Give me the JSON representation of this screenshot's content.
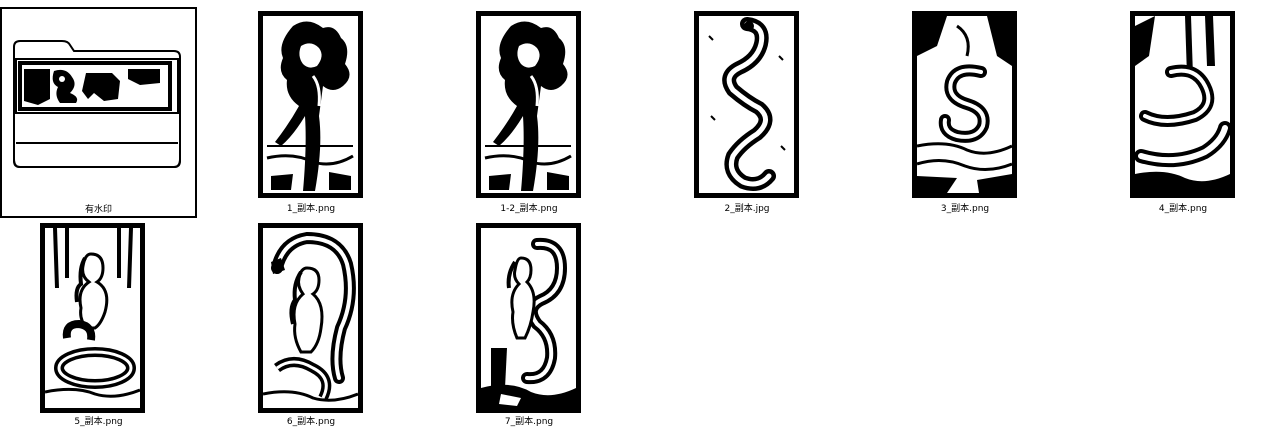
{
  "explorer": {
    "view": "large-icons",
    "items": [
      {
        "name": "有水印",
        "kind": "folder",
        "selected": true,
        "icon": "folder-icon"
      },
      {
        "name": "1_副本.png",
        "kind": "image",
        "icon": "tree-figure-icon"
      },
      {
        "name": "1-2_副本.png",
        "kind": "image",
        "icon": "tree-figure-icon"
      },
      {
        "name": "2_副本.jpg",
        "kind": "image",
        "icon": "serpent-icon"
      },
      {
        "name": "3_副本.png",
        "kind": "image",
        "icon": "serpent-icon"
      },
      {
        "name": "4_副本.png",
        "kind": "image",
        "icon": "serpent-icon"
      },
      {
        "name": "5_副本.png",
        "kind": "image",
        "icon": "woman-serpent-icon"
      },
      {
        "name": "6_副本.png",
        "kind": "image",
        "icon": "woman-serpent-icon"
      },
      {
        "name": "7_副本.png",
        "kind": "image",
        "icon": "woman-serpent-icon"
      }
    ]
  },
  "colors": {
    "ink": "#000000",
    "background": "#ffffff"
  }
}
